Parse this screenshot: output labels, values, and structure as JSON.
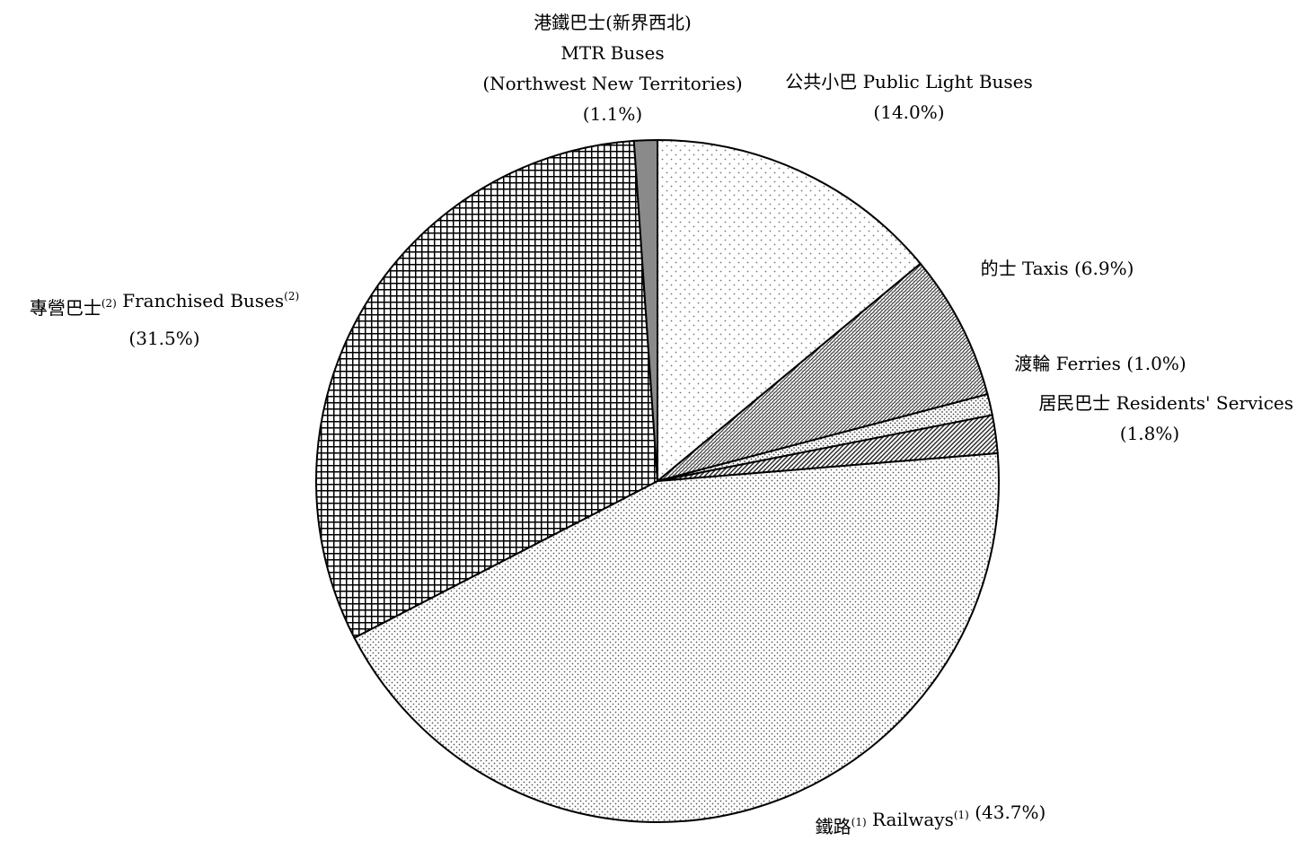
{
  "chart_data": {
    "type": "pie",
    "title": "",
    "start_angle_deg": 0,
    "direction": "clockwise",
    "slices": [
      {
        "key": "public-light-buses",
        "value": 14.0,
        "pattern": "sparse-dots",
        "label_lines": [
          [
            {
              "t": "公共小巴 Public Light Buses"
            }
          ],
          [
            {
              "t": "(14.0%)"
            }
          ]
        ]
      },
      {
        "key": "taxis",
        "value": 6.9,
        "pattern": "dense-diagonal",
        "label_lines": [
          [
            {
              "t": "的士 Taxis (6.9%)"
            }
          ]
        ]
      },
      {
        "key": "ferries",
        "value": 1.0,
        "pattern": "medium-dots",
        "label_lines": [
          [
            {
              "t": "渡輪 Ferries (1.0%)"
            }
          ]
        ]
      },
      {
        "key": "residents-services",
        "value": 1.8,
        "pattern": "diagonal-lines",
        "label_lines": [
          [
            {
              "t": "居民巴士 Residents' Services"
            }
          ],
          [
            {
              "t": "(1.8%)"
            }
          ]
        ]
      },
      {
        "key": "railways",
        "value": 43.7,
        "pattern": "fine-dots",
        "label_lines": [
          [
            {
              "t": "鐵路"
            },
            {
              "t": "(1)",
              "sup": true
            },
            {
              "t": " Railways"
            },
            {
              "t": "(1)",
              "sup": true
            },
            {
              "t": " (43.7%)"
            }
          ]
        ]
      },
      {
        "key": "franchised-buses",
        "value": 31.5,
        "pattern": "grid",
        "label_lines": [
          [
            {
              "t": "專營巴士"
            },
            {
              "t": "(2)",
              "sup": true
            },
            {
              "t": " Franchised Buses"
            },
            {
              "t": "(2)",
              "sup": true
            }
          ],
          [
            {
              "t": "(31.5%)"
            }
          ]
        ]
      },
      {
        "key": "mtr-buses",
        "value": 1.1,
        "pattern": "solid-gray",
        "label_lines": [
          [
            {
              "t": "港鐵巴士(新界西北)"
            }
          ],
          [
            {
              "t": "MTR Buses"
            }
          ],
          [
            {
              "t": "(Northwest New Territories)"
            }
          ],
          [
            {
              "t": "(1.1%)"
            }
          ]
        ]
      }
    ]
  }
}
